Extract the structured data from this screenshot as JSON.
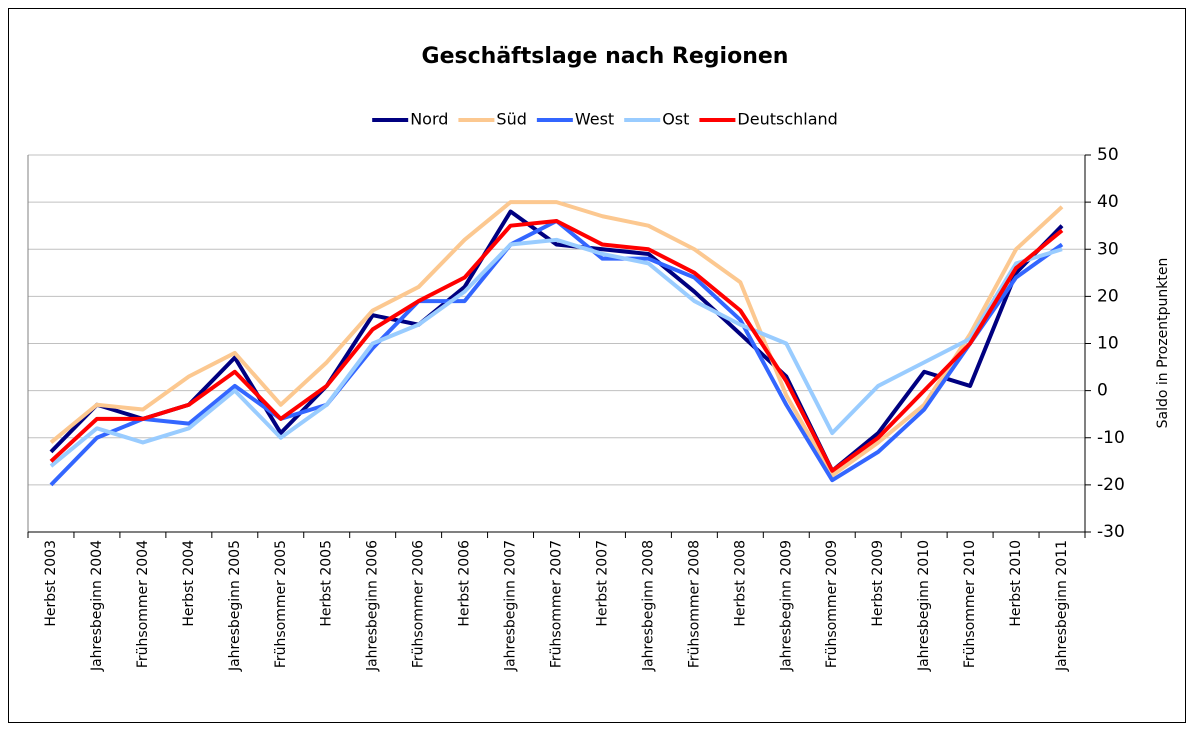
{
  "chart_data": {
    "type": "line",
    "title": "Geschäftslage nach Regionen",
    "y_label": "Saldo in Prozentpunkten",
    "categories": [
      "Herbst 2003",
      "Jahresbeginn 2004",
      "Frühsommer 2004",
      "Herbst 2004",
      "Jahresbeginn 2005",
      "Frühsommer 2005",
      "Herbst 2005",
      "Jahresbeginn 2006",
      "Frühsommer 2006",
      "Herbst 2006",
      "Jahresbeginn 2007",
      "Frühsommer 2007",
      "Herbst 2007",
      "Jahresbeginn 2008",
      "Frühsommer 2008",
      "Herbst 2008",
      "Jahresbeginn 2009",
      "Frühsommer 2009",
      "Herbst 2009",
      "Jahresbeginn 2010",
      "Frühsommer 2010",
      "Herbst 2010",
      "Jahresbeginn 2011"
    ],
    "series": [
      {
        "name": "Nord",
        "color": "#000080",
        "values": [
          -13,
          -3,
          -6,
          -3,
          7,
          -9,
          1,
          16,
          14,
          22,
          38,
          31,
          30,
          29,
          21,
          12,
          3,
          -17,
          -9,
          4,
          1,
          25,
          35
        ]
      },
      {
        "name": "Süd",
        "color": "#fcc890",
        "values": [
          -11,
          -3,
          -4,
          3,
          8,
          -3,
          6,
          17,
          22,
          32,
          40,
          40,
          37,
          35,
          30,
          23,
          -1,
          -18,
          -11,
          -3,
          12,
          30,
          39
        ]
      },
      {
        "name": "West",
        "color": "#3366ff",
        "values": [
          -20,
          -10,
          -6,
          -7,
          1,
          -6,
          -3,
          9,
          19,
          19,
          31,
          36,
          28,
          28,
          24,
          15,
          -3,
          -19,
          -13,
          -4,
          10,
          24,
          31
        ]
      },
      {
        "name": "Ost",
        "color": "#99ccff",
        "values": [
          -16,
          -8,
          -11,
          -8,
          0,
          -10,
          -3,
          10,
          14,
          21,
          31,
          32,
          29,
          27,
          19,
          14,
          10,
          -9,
          1,
          6,
          11,
          27,
          30
        ]
      },
      {
        "name": "Deutschland",
        "color": "#ff0000",
        "values": [
          -15,
          -6,
          -6,
          -3,
          4,
          -6,
          1,
          13,
          19,
          24,
          35,
          36,
          31,
          30,
          25,
          17,
          2,
          -17,
          -10,
          0,
          10,
          26,
          34
        ]
      }
    ],
    "ylim": [
      -30,
      50
    ],
    "yticks": [
      -30,
      -20,
      -10,
      0,
      10,
      20,
      30,
      40,
      50
    ],
    "grid": true,
    "legend": "top"
  }
}
